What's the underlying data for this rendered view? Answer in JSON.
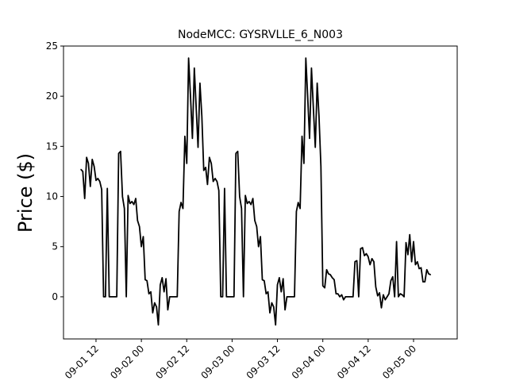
{
  "chart_data": {
    "type": "line",
    "title": "NodeMCC: GYSRVLLE_6_N003",
    "xlabel": "",
    "ylabel": "Price ($)",
    "ylim": [
      -4.2,
      25
    ],
    "yticks": [
      0,
      5,
      10,
      15,
      20,
      25
    ],
    "xlim": [
      "2019-09-01 03:24",
      "2019-09-05 11:33"
    ],
    "xticks": [
      {
        "at": "2019-09-01 12:00",
        "label": "09-01 12"
      },
      {
        "at": "2019-09-02 00:00",
        "label": "09-02 00"
      },
      {
        "at": "2019-09-02 12:00",
        "label": "09-02 12"
      },
      {
        "at": "2019-09-03 00:00",
        "label": "09-03 00"
      },
      {
        "at": "2019-09-03 12:00",
        "label": "09-03 12"
      },
      {
        "at": "2019-09-04 00:00",
        "label": "09-04 00"
      },
      {
        "at": "2019-09-04 12:00",
        "label": "09-04 12"
      },
      {
        "at": "2019-09-05 00:00",
        "label": "09-05 00"
      }
    ],
    "grid": false,
    "line_color": "#000000",
    "series": [
      {
        "values": [
          [
            "2019-09-01 08:00",
            12.7
          ],
          [
            "2019-09-01 08:30",
            12.5
          ],
          [
            "2019-09-01 09:00",
            9.8
          ],
          [
            "2019-09-01 09:30",
            13.9
          ],
          [
            "2019-09-01 10:00",
            13.3
          ],
          [
            "2019-09-01 10:30",
            11.0
          ],
          [
            "2019-09-01 11:00",
            13.7
          ],
          [
            "2019-09-01 11:30",
            13.0
          ],
          [
            "2019-09-01 12:00",
            11.6
          ],
          [
            "2019-09-01 12:30",
            11.8
          ],
          [
            "2019-09-01 13:00",
            11.5
          ],
          [
            "2019-09-01 13:30",
            10.7
          ],
          [
            "2019-09-01 14:00",
            0.0
          ],
          [
            "2019-09-01 14:30",
            0.0
          ],
          [
            "2019-09-01 15:00",
            10.8
          ],
          [
            "2019-09-01 15:30",
            0.0
          ],
          [
            "2019-09-01 16:00",
            0.0
          ],
          [
            "2019-09-01 16:30",
            0.0
          ],
          [
            "2019-09-01 17:00",
            0.0
          ],
          [
            "2019-09-01 17:30",
            0.0
          ],
          [
            "2019-09-01 18:00",
            14.3
          ],
          [
            "2019-09-01 18:30",
            14.5
          ],
          [
            "2019-09-01 19:00",
            10.0
          ],
          [
            "2019-09-01 19:30",
            8.8
          ],
          [
            "2019-09-01 20:00",
            0.0
          ],
          [
            "2019-09-01 20:30",
            10.1
          ],
          [
            "2019-09-01 21:00",
            9.3
          ],
          [
            "2019-09-01 21:30",
            9.5
          ],
          [
            "2019-09-01 22:00",
            9.2
          ],
          [
            "2019-09-01 22:30",
            9.8
          ],
          [
            "2019-09-01 23:00",
            7.6
          ],
          [
            "2019-09-01 23:30",
            7.0
          ],
          [
            "2019-09-02 00:00",
            5.0
          ],
          [
            "2019-09-02 00:30",
            6.0
          ],
          [
            "2019-09-02 01:00",
            1.7
          ],
          [
            "2019-09-02 01:30",
            1.6
          ],
          [
            "2019-09-02 02:00",
            0.3
          ],
          [
            "2019-09-02 02:30",
            0.5
          ],
          [
            "2019-09-02 03:00",
            -1.6
          ],
          [
            "2019-09-02 03:30",
            -0.6
          ],
          [
            "2019-09-02 04:00",
            -1.0
          ],
          [
            "2019-09-02 04:30",
            -2.8
          ],
          [
            "2019-09-02 05:00",
            1.2
          ],
          [
            "2019-09-02 05:30",
            1.9
          ],
          [
            "2019-09-02 06:00",
            0.5
          ],
          [
            "2019-09-02 06:30",
            1.8
          ],
          [
            "2019-09-02 07:00",
            -1.3
          ],
          [
            "2019-09-02 07:30",
            0.0
          ],
          [
            "2019-09-02 08:00",
            0.0
          ],
          [
            "2019-09-02 08:30",
            0.0
          ],
          [
            "2019-09-02 09:00",
            0.0
          ],
          [
            "2019-09-02 09:30",
            0.0
          ],
          [
            "2019-09-02 10:00",
            8.5
          ],
          [
            "2019-09-02 10:30",
            9.4
          ],
          [
            "2019-09-02 11:00",
            8.8
          ],
          [
            "2019-09-02 11:30",
            16.0
          ],
          [
            "2019-09-02 12:00",
            13.3
          ],
          [
            "2019-09-02 12:30",
            23.8
          ],
          [
            "2019-09-02 13:00",
            20.0
          ],
          [
            "2019-09-02 13:30",
            15.8
          ],
          [
            "2019-09-02 14:00",
            22.8
          ],
          [
            "2019-09-02 14:30",
            18.8
          ],
          [
            "2019-09-02 15:00",
            14.9
          ],
          [
            "2019-09-02 15:30",
            21.3
          ],
          [
            "2019-09-02 16:00",
            18.0
          ],
          [
            "2019-09-02 16:30",
            12.6
          ],
          [
            "2019-09-02 17:00",
            12.9
          ],
          [
            "2019-09-02 17:30",
            11.2
          ],
          [
            "2019-09-02 18:00",
            13.9
          ],
          [
            "2019-09-02 18:30",
            13.3
          ],
          [
            "2019-09-02 19:00",
            11.5
          ],
          [
            "2019-09-02 19:30",
            11.8
          ],
          [
            "2019-09-02 20:00",
            11.5
          ],
          [
            "2019-09-02 20:30",
            10.6
          ],
          [
            "2019-09-02 21:00",
            0.0
          ],
          [
            "2019-09-02 21:30",
            0.0
          ],
          [
            "2019-09-02 22:00",
            10.8
          ],
          [
            "2019-09-02 22:30",
            0.0
          ],
          [
            "2019-09-02 23:00",
            0.0
          ],
          [
            "2019-09-02 23:30",
            0.0
          ],
          [
            "2019-09-03 00:00",
            0.0
          ],
          [
            "2019-09-03 00:30",
            0.0
          ],
          [
            "2019-09-03 01:00",
            14.3
          ],
          [
            "2019-09-03 01:30",
            14.5
          ],
          [
            "2019-09-03 02:00",
            10.0
          ],
          [
            "2019-09-03 02:30",
            8.8
          ],
          [
            "2019-09-03 03:00",
            0.0
          ],
          [
            "2019-09-03 03:30",
            10.1
          ],
          [
            "2019-09-03 04:00",
            9.3
          ],
          [
            "2019-09-03 04:30",
            9.5
          ],
          [
            "2019-09-03 05:00",
            9.2
          ],
          [
            "2019-09-03 05:30",
            9.8
          ],
          [
            "2019-09-03 06:00",
            7.6
          ],
          [
            "2019-09-03 06:30",
            7.0
          ],
          [
            "2019-09-03 07:00",
            5.0
          ],
          [
            "2019-09-03 07:30",
            6.0
          ],
          [
            "2019-09-03 08:00",
            1.7
          ],
          [
            "2019-09-03 08:30",
            1.6
          ],
          [
            "2019-09-03 09:00",
            0.3
          ],
          [
            "2019-09-03 09:30",
            0.5
          ],
          [
            "2019-09-03 10:00",
            -1.6
          ],
          [
            "2019-09-03 10:30",
            -0.6
          ],
          [
            "2019-09-03 11:00",
            -1.0
          ],
          [
            "2019-09-03 11:30",
            -2.8
          ],
          [
            "2019-09-03 12:00",
            1.2
          ],
          [
            "2019-09-03 12:30",
            1.9
          ],
          [
            "2019-09-03 13:00",
            0.5
          ],
          [
            "2019-09-03 13:30",
            1.8
          ],
          [
            "2019-09-03 14:00",
            -1.3
          ],
          [
            "2019-09-03 14:30",
            0.0
          ],
          [
            "2019-09-03 15:00",
            0.0
          ],
          [
            "2019-09-03 15:30",
            0.0
          ],
          [
            "2019-09-03 16:00",
            0.0
          ],
          [
            "2019-09-03 16:30",
            0.0
          ],
          [
            "2019-09-03 17:00",
            8.5
          ],
          [
            "2019-09-03 17:30",
            9.4
          ],
          [
            "2019-09-03 18:00",
            8.8
          ],
          [
            "2019-09-03 18:30",
            16.0
          ],
          [
            "2019-09-03 19:00",
            13.3
          ],
          [
            "2019-09-03 19:30",
            23.8
          ],
          [
            "2019-09-03 20:00",
            20.0
          ],
          [
            "2019-09-03 20:30",
            15.8
          ],
          [
            "2019-09-03 21:00",
            22.8
          ],
          [
            "2019-09-03 21:30",
            18.8
          ],
          [
            "2019-09-03 22:00",
            14.9
          ],
          [
            "2019-09-03 22:30",
            21.3
          ],
          [
            "2019-09-03 23:00",
            18.0
          ],
          [
            "2019-09-03 23:30",
            13.0
          ],
          [
            "2019-09-04 00:00",
            1.1
          ],
          [
            "2019-09-04 00:30",
            0.9
          ],
          [
            "2019-09-04 01:00",
            2.7
          ],
          [
            "2019-09-04 01:30",
            2.3
          ],
          [
            "2019-09-04 02:00",
            2.2
          ],
          [
            "2019-09-04 02:30",
            1.9
          ],
          [
            "2019-09-04 03:00",
            1.7
          ],
          [
            "2019-09-04 03:30",
            0.3
          ],
          [
            "2019-09-04 04:00",
            0.3
          ],
          [
            "2019-09-04 04:30",
            0.0
          ],
          [
            "2019-09-04 05:00",
            0.2
          ],
          [
            "2019-09-04 05:30",
            -0.3
          ],
          [
            "2019-09-04 06:00",
            0.0
          ],
          [
            "2019-09-04 06:30",
            0.0
          ],
          [
            "2019-09-04 07:00",
            0.0
          ],
          [
            "2019-09-04 07:30",
            0.0
          ],
          [
            "2019-09-04 08:00",
            0.0
          ],
          [
            "2019-09-04 08:30",
            3.5
          ],
          [
            "2019-09-04 09:00",
            3.6
          ],
          [
            "2019-09-04 09:30",
            0.0
          ],
          [
            "2019-09-04 10:00",
            4.8
          ],
          [
            "2019-09-04 10:30",
            4.9
          ],
          [
            "2019-09-04 11:00",
            4.1
          ],
          [
            "2019-09-04 11:30",
            4.3
          ],
          [
            "2019-09-04 12:00",
            4.0
          ],
          [
            "2019-09-04 12:30",
            3.2
          ],
          [
            "2019-09-04 13:00",
            3.8
          ],
          [
            "2019-09-04 13:30",
            3.5
          ],
          [
            "2019-09-04 14:00",
            1.0
          ],
          [
            "2019-09-04 14:30",
            0.1
          ],
          [
            "2019-09-04 15:00",
            0.4
          ],
          [
            "2019-09-04 15:30",
            -1.1
          ],
          [
            "2019-09-04 16:00",
            0.2
          ],
          [
            "2019-09-04 16:30",
            -0.3
          ],
          [
            "2019-09-04 17:00",
            0.0
          ],
          [
            "2019-09-04 17:30",
            0.3
          ],
          [
            "2019-09-04 18:00",
            1.6
          ],
          [
            "2019-09-04 18:30",
            2.0
          ],
          [
            "2019-09-04 19:00",
            0.0
          ],
          [
            "2019-09-04 19:30",
            5.5
          ],
          [
            "2019-09-04 20:00",
            0.0
          ],
          [
            "2019-09-04 20:30",
            0.3
          ],
          [
            "2019-09-04 21:00",
            0.2
          ],
          [
            "2019-09-04 21:30",
            0.0
          ],
          [
            "2019-09-04 22:00",
            5.4
          ],
          [
            "2019-09-04 22:30",
            4.2
          ],
          [
            "2019-09-04 23:00",
            6.2
          ],
          [
            "2019-09-04 23:30",
            3.5
          ],
          [
            "2019-09-05 00:00",
            5.5
          ],
          [
            "2019-09-05 00:30",
            3.2
          ],
          [
            "2019-09-05 01:00",
            3.5
          ],
          [
            "2019-09-05 01:30",
            2.8
          ],
          [
            "2019-09-05 02:00",
            2.9
          ],
          [
            "2019-09-05 02:30",
            1.5
          ],
          [
            "2019-09-05 03:00",
            1.5
          ],
          [
            "2019-09-05 03:30",
            2.7
          ],
          [
            "2019-09-05 04:00",
            2.3
          ],
          [
            "2019-09-05 04:30",
            2.2
          ]
        ]
      }
    ]
  }
}
